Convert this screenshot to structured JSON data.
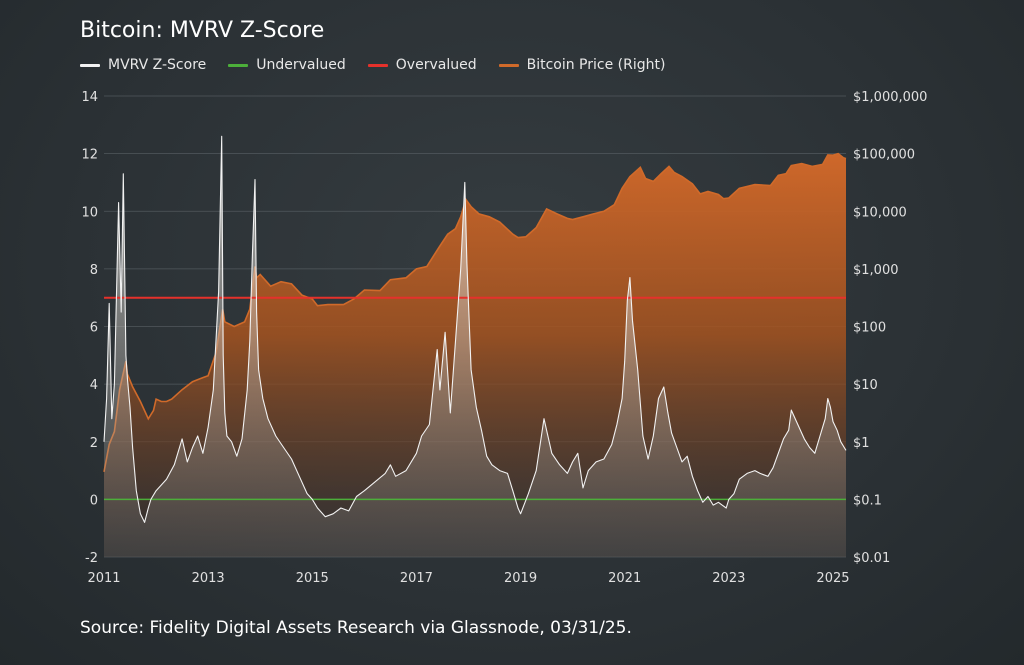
{
  "colors": {
    "zscore": "#f2f2f2",
    "undervalued": "#4caf3a",
    "overvalued": "#e5312b",
    "price": "#d06a2a",
    "grid": "#5a6266"
  },
  "footer": {
    "source": "Source: Fidelity Digital Assets Research via Glassnode, 03/31/25."
  },
  "chart_data": {
    "type": "line",
    "title": "Bitcoin: MVRV Z-Score",
    "legend_placement": "top-left",
    "grid": true,
    "legend": [
      {
        "key": "zscore",
        "label": "MVRV Z-Score"
      },
      {
        "key": "undervalued",
        "label": "Undervalued"
      },
      {
        "key": "overvalued",
        "label": "Overvalued"
      },
      {
        "key": "price",
        "label": "Bitcoin Price (Right)"
      }
    ],
    "x_ticks": [
      "2011",
      "2013",
      "2015",
      "2017",
      "2019",
      "2021",
      "2023",
      "2025"
    ],
    "xlim": [
      2011.0,
      2025.25
    ],
    "y_left": {
      "ticks": [
        "-2",
        "0",
        "2",
        "4",
        "6",
        "8",
        "10",
        "12",
        "14"
      ],
      "ylim": [
        -2,
        14
      ]
    },
    "y_right": {
      "scale": "log",
      "ticks": [
        "$0.01",
        "$0.1",
        "$1",
        "$10",
        "$100",
        "$1,000",
        "$10,000",
        "$100,000",
        "$1,000,000"
      ],
      "ylim": [
        0.01,
        1000000
      ]
    },
    "thresholds": {
      "undervalued": 0,
      "overvalued": 7
    },
    "series": [
      {
        "name": "MVRV Z-Score",
        "axis": "left",
        "x": [
          2011.0,
          2011.05,
          2011.1,
          2011.15,
          2011.2,
          2011.28,
          2011.33,
          2011.37,
          2011.42,
          2011.45,
          2011.5,
          2011.55,
          2011.62,
          2011.7,
          2011.78,
          2011.85,
          2011.9,
          2012.0,
          2012.1,
          2012.2,
          2012.35,
          2012.5,
          2012.6,
          2012.7,
          2012.8,
          2012.9,
          2013.0,
          2013.1,
          2013.2,
          2013.26,
          2013.29,
          2013.32,
          2013.36,
          2013.45,
          2013.55,
          2013.65,
          2013.75,
          2013.8,
          2013.85,
          2013.9,
          2013.93,
          2013.97,
          2014.05,
          2014.15,
          2014.3,
          2014.45,
          2014.6,
          2014.75,
          2014.9,
          2015.0,
          2015.1,
          2015.25,
          2015.4,
          2015.55,
          2015.7,
          2015.85,
          2016.0,
          2016.2,
          2016.4,
          2016.5,
          2016.6,
          2016.8,
          2017.0,
          2017.1,
          2017.25,
          2017.4,
          2017.45,
          2017.55,
          2017.65,
          2017.75,
          2017.85,
          2017.93,
          2017.97,
          2018.05,
          2018.15,
          2018.25,
          2018.35,
          2018.45,
          2018.6,
          2018.75,
          2018.85,
          2018.95,
          2019.0,
          2019.15,
          2019.3,
          2019.45,
          2019.5,
          2019.6,
          2019.75,
          2019.9,
          2020.0,
          2020.1,
          2020.2,
          2020.3,
          2020.45,
          2020.6,
          2020.75,
          2020.85,
          2020.95,
          2021.0,
          2021.05,
          2021.1,
          2021.15,
          2021.25,
          2021.35,
          2021.45,
          2021.55,
          2021.65,
          2021.75,
          2021.83,
          2021.9,
          2022.0,
          2022.1,
          2022.2,
          2022.3,
          2022.4,
          2022.5,
          2022.6,
          2022.7,
          2022.8,
          2022.87,
          2022.95,
          2023.0,
          2023.1,
          2023.2,
          2023.35,
          2023.5,
          2023.6,
          2023.75,
          2023.85,
          2023.95,
          2024.05,
          2024.15,
          2024.2,
          2024.3,
          2024.45,
          2024.55,
          2024.65,
          2024.75,
          2024.85,
          2024.9,
          2024.95,
          2025.0,
          2025.08,
          2025.15,
          2025.25
        ],
        "values": [
          2.0,
          3.5,
          6.8,
          2.8,
          4.0,
          10.3,
          6.5,
          11.3,
          5.0,
          4.2,
          3.2,
          1.8,
          0.3,
          -0.5,
          -0.8,
          -0.3,
          0.0,
          0.3,
          0.5,
          0.7,
          1.2,
          2.1,
          1.3,
          1.8,
          2.2,
          1.6,
          2.5,
          3.8,
          7.2,
          12.6,
          5.0,
          3.0,
          2.2,
          2.0,
          1.5,
          2.1,
          3.8,
          5.5,
          8.5,
          11.1,
          6.5,
          4.5,
          3.5,
          2.8,
          2.2,
          1.8,
          1.4,
          0.8,
          0.2,
          0.0,
          -0.3,
          -0.6,
          -0.5,
          -0.3,
          -0.4,
          0.1,
          0.3,
          0.6,
          0.9,
          1.2,
          0.8,
          1.0,
          1.6,
          2.2,
          2.6,
          5.2,
          3.8,
          5.8,
          3.0,
          5.5,
          8.0,
          11.0,
          8.2,
          4.5,
          3.2,
          2.4,
          1.5,
          1.2,
          1.0,
          0.9,
          0.3,
          -0.3,
          -0.5,
          0.2,
          1.0,
          2.8,
          2.4,
          1.6,
          1.2,
          0.9,
          1.3,
          1.6,
          0.4,
          1.0,
          1.3,
          1.4,
          1.9,
          2.6,
          3.5,
          4.8,
          6.9,
          7.7,
          6.2,
          4.5,
          2.2,
          1.4,
          2.2,
          3.5,
          3.9,
          3.0,
          2.3,
          1.8,
          1.3,
          1.5,
          0.8,
          0.3,
          -0.1,
          0.1,
          -0.2,
          -0.1,
          -0.2,
          -0.3,
          0.0,
          0.2,
          0.7,
          0.9,
          1.0,
          0.9,
          0.8,
          1.1,
          1.6,
          2.1,
          2.4,
          3.1,
          2.7,
          2.1,
          1.8,
          1.6,
          2.2,
          2.8,
          3.5,
          3.2,
          2.7,
          2.4,
          2.0,
          1.7
        ]
      },
      {
        "name": "Bitcoin Price (Right)",
        "axis": "right",
        "x": [
          2011.0,
          2011.1,
          2011.2,
          2011.3,
          2011.42,
          2011.45,
          2011.55,
          2011.7,
          2011.85,
          2011.95,
          2012.0,
          2012.1,
          2012.2,
          2012.3,
          2012.5,
          2012.7,
          2012.9,
          2013.0,
          2013.15,
          2013.28,
          2013.32,
          2013.5,
          2013.7,
          2013.8,
          2013.9,
          2013.93,
          2014.0,
          2014.2,
          2014.4,
          2014.6,
          2014.8,
          2015.0,
          2015.1,
          2015.3,
          2015.6,
          2015.8,
          2016.0,
          2016.3,
          2016.5,
          2016.8,
          2017.0,
          2017.2,
          2017.45,
          2017.6,
          2017.75,
          2017.85,
          2017.95,
          2018.05,
          2018.2,
          2018.4,
          2018.6,
          2018.85,
          2018.95,
          2019.1,
          2019.3,
          2019.5,
          2019.7,
          2019.9,
          2020.0,
          2020.2,
          2020.4,
          2020.6,
          2020.8,
          2020.95,
          2021.1,
          2021.3,
          2021.4,
          2021.55,
          2021.7,
          2021.85,
          2021.95,
          2022.1,
          2022.3,
          2022.45,
          2022.6,
          2022.8,
          2022.9,
          2023.0,
          2023.2,
          2023.5,
          2023.8,
          2023.95,
          2024.1,
          2024.2,
          2024.4,
          2024.6,
          2024.8,
          2024.9,
          2025.0,
          2025.1,
          2025.2,
          2025.25
        ],
        "values": [
          0.3,
          0.9,
          1.5,
          8.0,
          25.0,
          15.0,
          9.0,
          5.0,
          2.5,
          3.5,
          5.5,
          5.0,
          5.0,
          5.5,
          8.0,
          11.0,
          13.0,
          14.0,
          35.0,
          200.0,
          120.0,
          100.0,
          120.0,
          200.0,
          1100.0,
          700.0,
          800.0,
          500.0,
          600.0,
          550.0,
          350.0,
          300.0,
          230.0,
          240.0,
          240.0,
          300.0,
          430.0,
          420.0,
          650.0,
          700.0,
          1000.0,
          1100.0,
          2500.0,
          4000.0,
          5000.0,
          8000.0,
          16000.0,
          12000.0,
          9000.0,
          8000.0,
          6500.0,
          4000.0,
          3500.0,
          3600.0,
          5200.0,
          11000.0,
          9000.0,
          7500.0,
          7200.0,
          8000.0,
          9000.0,
          10000.0,
          13000.0,
          25000.0,
          40000.0,
          58000.0,
          37000.0,
          33000.0,
          45000.0,
          60000.0,
          47000.0,
          40000.0,
          30000.0,
          20000.0,
          22000.0,
          19500.0,
          16500.0,
          17000.0,
          25000.0,
          29000.0,
          28000.0,
          42000.0,
          45000.0,
          62000.0,
          67000.0,
          60000.0,
          65000.0,
          95000.0,
          94000.0,
          100000.0,
          85000.0,
          82000.0
        ]
      }
    ]
  }
}
